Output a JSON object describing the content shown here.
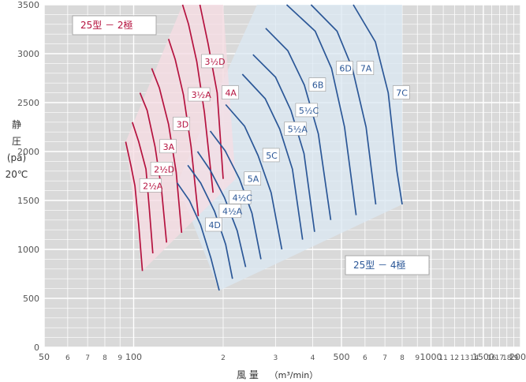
{
  "chart_data": {
    "type": "line",
    "xlabel": "風 量",
    "xunit": "（m³/min）",
    "ylabel_lines": [
      "静",
      "圧",
      "(pa)",
      "20℃"
    ],
    "y_ticks": [
      0,
      500,
      1000,
      1500,
      2000,
      2500,
      3000,
      3500
    ],
    "ylim": [
      0,
      3500
    ],
    "x_scale": "log",
    "x_ticks": [
      {
        "v": 50,
        "label": "50",
        "major": true
      },
      {
        "v": 60,
        "label": "6",
        "major": false
      },
      {
        "v": 70,
        "label": "7",
        "major": false
      },
      {
        "v": 80,
        "label": "8",
        "major": false
      },
      {
        "v": 90,
        "label": "9",
        "major": false
      },
      {
        "v": 100,
        "label": "100",
        "major": true
      },
      {
        "v": 200,
        "label": "2",
        "major": false
      },
      {
        "v": 300,
        "label": "3",
        "major": false
      },
      {
        "v": 400,
        "label": "4",
        "major": false
      },
      {
        "v": 500,
        "label": "500",
        "major": true
      },
      {
        "v": 600,
        "label": "6",
        "major": false
      },
      {
        "v": 700,
        "label": "7",
        "major": false
      },
      {
        "v": 800,
        "label": "8",
        "major": false
      },
      {
        "v": 900,
        "label": "9",
        "major": false
      },
      {
        "v": 1000,
        "label": "1000",
        "major": true
      },
      {
        "v": 1100,
        "label": "11",
        "major": false
      },
      {
        "v": 1200,
        "label": "12",
        "major": false
      },
      {
        "v": 1300,
        "label": "13",
        "major": false
      },
      {
        "v": 1400,
        "label": "14",
        "major": false
      },
      {
        "v": 1500,
        "label": "1500",
        "major": true
      },
      {
        "v": 1600,
        "label": "16",
        "major": false
      },
      {
        "v": 1700,
        "label": "17",
        "major": false
      },
      {
        "v": 1800,
        "label": "18",
        "major": false
      },
      {
        "v": 1900,
        "label": "19",
        "major": false
      },
      {
        "v": 2000,
        "label": "2000",
        "major": true
      }
    ],
    "grid": true,
    "colors": {
      "two_pole": "#b5123f",
      "two_pole_fill": "#f7dce3",
      "four_pole": "#2b5797",
      "four_pole_fill": "#dbe8f3",
      "grid_major": "#ffffff",
      "background": "#d9d9d9"
    },
    "groups": [
      {
        "name": "25型 － 2極",
        "series": [
          {
            "name": "2½A",
            "points": [
              [
                94,
                2100
              ],
              [
                98,
                1850
              ],
              [
                101,
                1650
              ],
              [
                104,
                1250
              ],
              [
                107,
                780
              ]
            ]
          },
          {
            "name": "2½D",
            "points": [
              [
                99,
                2300
              ],
              [
                104,
                2100
              ],
              [
                110,
                1820
              ],
              [
                113,
                1400
              ],
              [
                116,
                960
              ]
            ]
          },
          {
            "name": "3A",
            "points": [
              [
                105,
                2600
              ],
              [
                111,
                2420
              ],
              [
                118,
                2050
              ],
              [
                124,
                1620
              ],
              [
                129,
                1070
              ]
            ]
          },
          {
            "name": "3D",
            "points": [
              [
                115,
                2850
              ],
              [
                122,
                2650
              ],
              [
                131,
                2280
              ],
              [
                139,
                1790
              ],
              [
                145,
                1170
              ]
            ]
          },
          {
            "name": "3½A",
            "points": [
              [
                131,
                3150
              ],
              [
                138,
                2940
              ],
              [
                147,
                2580
              ],
              [
                156,
                2050
              ],
              [
                165,
                1340
              ]
            ]
          },
          {
            "name": "3½D",
            "points": [
              [
                146,
                3500
              ],
              [
                153,
                3300
              ],
              [
                163,
                2920
              ],
              [
                173,
                2400
              ],
              [
                185,
                1580
              ]
            ]
          },
          {
            "name": "4A",
            "points": [
              [
                167,
                3500
              ],
              [
                178,
                3100
              ],
              [
                191,
                2600
              ],
              [
                200,
                1720
              ]
            ]
          }
        ]
      },
      {
        "name": "25型 － 4極",
        "series": [
          {
            "name": "4D",
            "points": [
              [
                140,
                1680
              ],
              [
                154,
                1500
              ],
              [
                168,
                1250
              ],
              [
                182,
                910
              ],
              [
                194,
                580
              ]
            ]
          },
          {
            "name": "4½A",
            "points": [
              [
                152,
                1860
              ],
              [
                168,
                1680
              ],
              [
                187,
                1390
              ],
              [
                204,
                1050
              ],
              [
                215,
                700
              ]
            ]
          },
          {
            "name": "4½C",
            "points": [
              [
                164,
                2000
              ],
              [
                181,
                1810
              ],
              [
                202,
                1530
              ],
              [
                223,
                1190
              ],
              [
                238,
                820
              ]
            ]
          },
          {
            "name": "5A",
            "points": [
              [
                181,
                2210
              ],
              [
                203,
                2010
              ],
              [
                227,
                1720
              ],
              [
                250,
                1370
              ],
              [
                268,
                900
              ]
            ]
          },
          {
            "name": "5C",
            "points": [
              [
                204,
                2480
              ],
              [
                236,
                2260
              ],
              [
                262,
                1960
              ],
              [
                290,
                1580
              ],
              [
                315,
                1000
              ]
            ]
          },
          {
            "name": "5½A",
            "points": [
              [
                232,
                2790
              ],
              [
                277,
                2540
              ],
              [
                310,
                2230
              ],
              [
                342,
                1820
              ],
              [
                370,
                1100
              ]
            ]
          },
          {
            "name": "5½C",
            "points": [
              [
                252,
                2990
              ],
              [
                300,
                2760
              ],
              [
                338,
                2420
              ],
              [
                374,
                1980
              ],
              [
                406,
                1180
              ]
            ]
          },
          {
            "name": "6B",
            "points": [
              [
                278,
                3260
              ],
              [
                330,
                3030
              ],
              [
                375,
                2680
              ],
              [
                418,
                2180
              ],
              [
                460,
                1300
              ]
            ]
          },
          {
            "name": "6D",
            "points": [
              [
                327,
                3500
              ],
              [
                408,
                3230
              ],
              [
                463,
                2850
              ],
              [
                512,
                2250
              ],
              [
                560,
                1350
              ]
            ]
          },
          {
            "name": "7A",
            "points": [
              [
                395,
                3500
              ],
              [
                483,
                3230
              ],
              [
                544,
                2850
              ],
              [
                605,
                2250
              ],
              [
                652,
                1460
              ]
            ]
          },
          {
            "name": "7C",
            "points": [
              [
                548,
                3500
              ],
              [
                650,
                3120
              ],
              [
                718,
                2600
              ],
              [
                768,
                1800
              ],
              [
                800,
                1460
              ]
            ]
          }
        ]
      }
    ],
    "envelopes": {
      "two_pole": [
        [
          94,
          2100
        ],
        [
          146,
          3500
        ],
        [
          200,
          3500
        ],
        [
          220,
          1720
        ],
        [
          107,
          780
        ]
      ],
      "four_pole": [
        [
          140,
          1680
        ],
        [
          260,
          3500
        ],
        [
          800,
          3500
        ],
        [
          800,
          1460
        ],
        [
          194,
          580
        ]
      ]
    },
    "labels": [
      {
        "text": "25型 － 2極",
        "type": "group"
      },
      {
        "text": "25型 － 4極",
        "type": "group"
      }
    ]
  }
}
